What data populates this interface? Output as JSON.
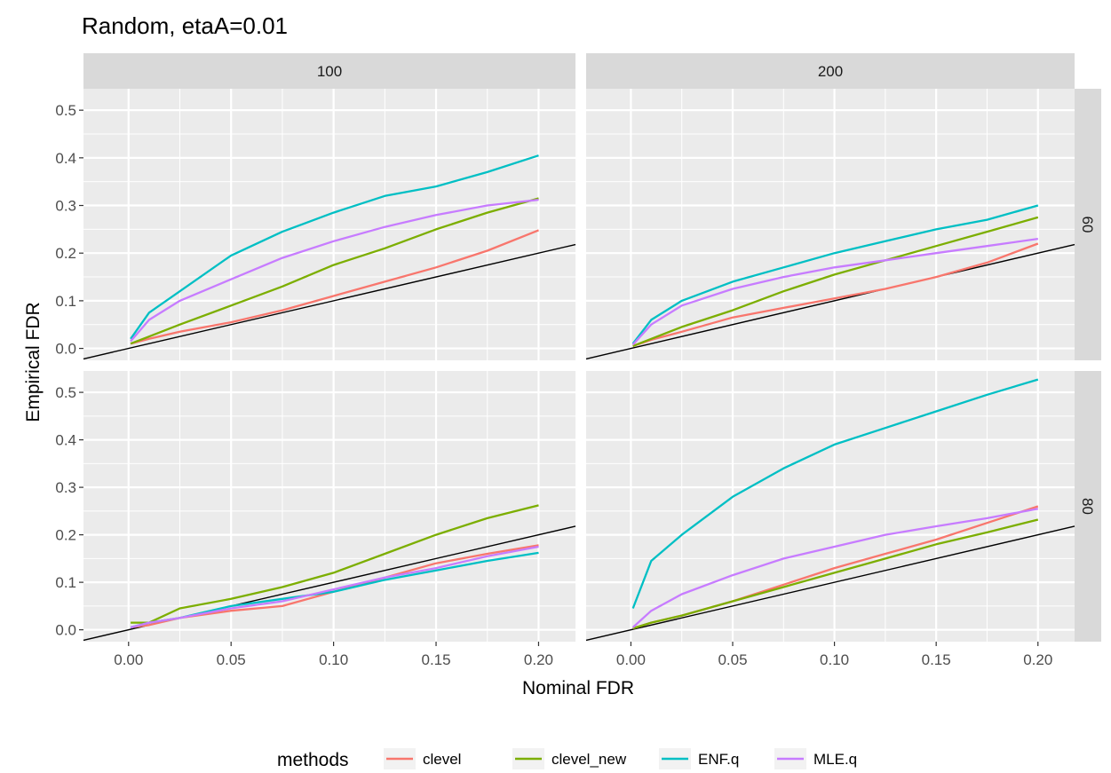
{
  "chart_data": {
    "type": "line",
    "title": "Random, etaA=0.01",
    "xlabel": "Nominal FDR",
    "ylabel": "Empirical FDR",
    "xlim": [
      -0.022,
      0.218
    ],
    "ylim": [
      -0.025,
      0.545
    ],
    "x_ticks": [
      0.0,
      0.05,
      0.1,
      0.15,
      0.2
    ],
    "x_tick_labels": [
      "0.00",
      "0.05",
      "0.10",
      "0.15",
      "0.20"
    ],
    "y_ticks": [
      0.0,
      0.1,
      0.2,
      0.3,
      0.4,
      0.5
    ],
    "y_tick_labels": [
      "0.0",
      "0.1",
      "0.2",
      "0.3",
      "0.4",
      "0.5"
    ],
    "grid": true,
    "facet_cols": [
      "100",
      "200"
    ],
    "facet_rows": [
      "60",
      "80"
    ],
    "reference_line": "y = x",
    "legend": {
      "title": "methods",
      "position": "bottom",
      "entries": [
        {
          "name": "clevel",
          "color": "#F8766D"
        },
        {
          "name": "clevel_new",
          "color": "#7CAE00"
        },
        {
          "name": "ENF.q",
          "color": "#00BFC4"
        },
        {
          "name": "MLE.q",
          "color": "#C77CFF"
        }
      ]
    },
    "panels": [
      {
        "col": "100",
        "row": "60",
        "x": [
          0.001,
          0.01,
          0.025,
          0.05,
          0.075,
          0.1,
          0.125,
          0.15,
          0.175,
          0.2
        ],
        "series": [
          {
            "name": "clevel",
            "values": [
              0.01,
              0.02,
              0.035,
              0.055,
              0.08,
              0.11,
              0.14,
              0.17,
              0.205,
              0.248
            ]
          },
          {
            "name": "clevel_new",
            "values": [
              0.01,
              0.025,
              0.05,
              0.09,
              0.13,
              0.175,
              0.21,
              0.25,
              0.285,
              0.315
            ]
          },
          {
            "name": "ENF.q",
            "values": [
              0.02,
              0.075,
              0.12,
              0.195,
              0.245,
              0.285,
              0.32,
              0.34,
              0.37,
              0.405
            ]
          },
          {
            "name": "MLE.q",
            "values": [
              0.015,
              0.06,
              0.1,
              0.145,
              0.19,
              0.225,
              0.255,
              0.28,
              0.3,
              0.312
            ]
          }
        ]
      },
      {
        "col": "200",
        "row": "60",
        "x": [
          0.001,
          0.01,
          0.025,
          0.05,
          0.075,
          0.1,
          0.125,
          0.15,
          0.175,
          0.2
        ],
        "series": [
          {
            "name": "clevel",
            "values": [
              0.005,
              0.018,
              0.035,
              0.065,
              0.085,
              0.105,
              0.125,
              0.15,
              0.18,
              0.22
            ]
          },
          {
            "name": "clevel_new",
            "values": [
              0.005,
              0.02,
              0.045,
              0.08,
              0.12,
              0.155,
              0.185,
              0.215,
              0.245,
              0.275
            ]
          },
          {
            "name": "ENF.q",
            "values": [
              0.01,
              0.06,
              0.1,
              0.14,
              0.17,
              0.2,
              0.225,
              0.25,
              0.27,
              0.3
            ]
          },
          {
            "name": "MLE.q",
            "values": [
              0.008,
              0.05,
              0.09,
              0.125,
              0.15,
              0.17,
              0.185,
              0.2,
              0.215,
              0.23
            ]
          }
        ]
      },
      {
        "col": "100",
        "row": "80",
        "x": [
          0.001,
          0.01,
          0.025,
          0.05,
          0.075,
          0.1,
          0.125,
          0.15,
          0.175,
          0.2
        ],
        "series": [
          {
            "name": "clevel",
            "values": [
              0.005,
              0.01,
              0.025,
              0.04,
              0.05,
              0.08,
              0.11,
              0.14,
              0.16,
              0.178
            ]
          },
          {
            "name": "clevel_new",
            "values": [
              0.015,
              0.015,
              0.045,
              0.065,
              0.09,
              0.12,
              0.16,
              0.2,
              0.235,
              0.262
            ]
          },
          {
            "name": "ENF.q",
            "values": [
              0.005,
              0.015,
              0.025,
              0.05,
              0.065,
              0.08,
              0.105,
              0.125,
              0.145,
              0.162
            ]
          },
          {
            "name": "MLE.q",
            "values": [
              0.005,
              0.015,
              0.025,
              0.045,
              0.06,
              0.085,
              0.11,
              0.13,
              0.155,
              0.175
            ]
          }
        ]
      },
      {
        "col": "200",
        "row": "80",
        "x": [
          0.001,
          0.01,
          0.025,
          0.05,
          0.075,
          0.1,
          0.125,
          0.15,
          0.175,
          0.2
        ],
        "series": [
          {
            "name": "clevel",
            "values": [
              0.003,
              0.015,
              0.03,
              0.06,
              0.095,
              0.13,
              0.16,
              0.19,
              0.225,
              0.26
            ]
          },
          {
            "name": "clevel_new",
            "values": [
              0.003,
              0.015,
              0.03,
              0.06,
              0.09,
              0.12,
              0.15,
              0.18,
              0.205,
              0.232
            ]
          },
          {
            "name": "ENF.q",
            "values": [
              0.045,
              0.145,
              0.2,
              0.28,
              0.34,
              0.39,
              0.425,
              0.46,
              0.495,
              0.527
            ]
          },
          {
            "name": "MLE.q",
            "values": [
              0.005,
              0.04,
              0.075,
              0.115,
              0.15,
              0.175,
              0.2,
              0.218,
              0.235,
              0.255
            ]
          }
        ]
      }
    ]
  }
}
